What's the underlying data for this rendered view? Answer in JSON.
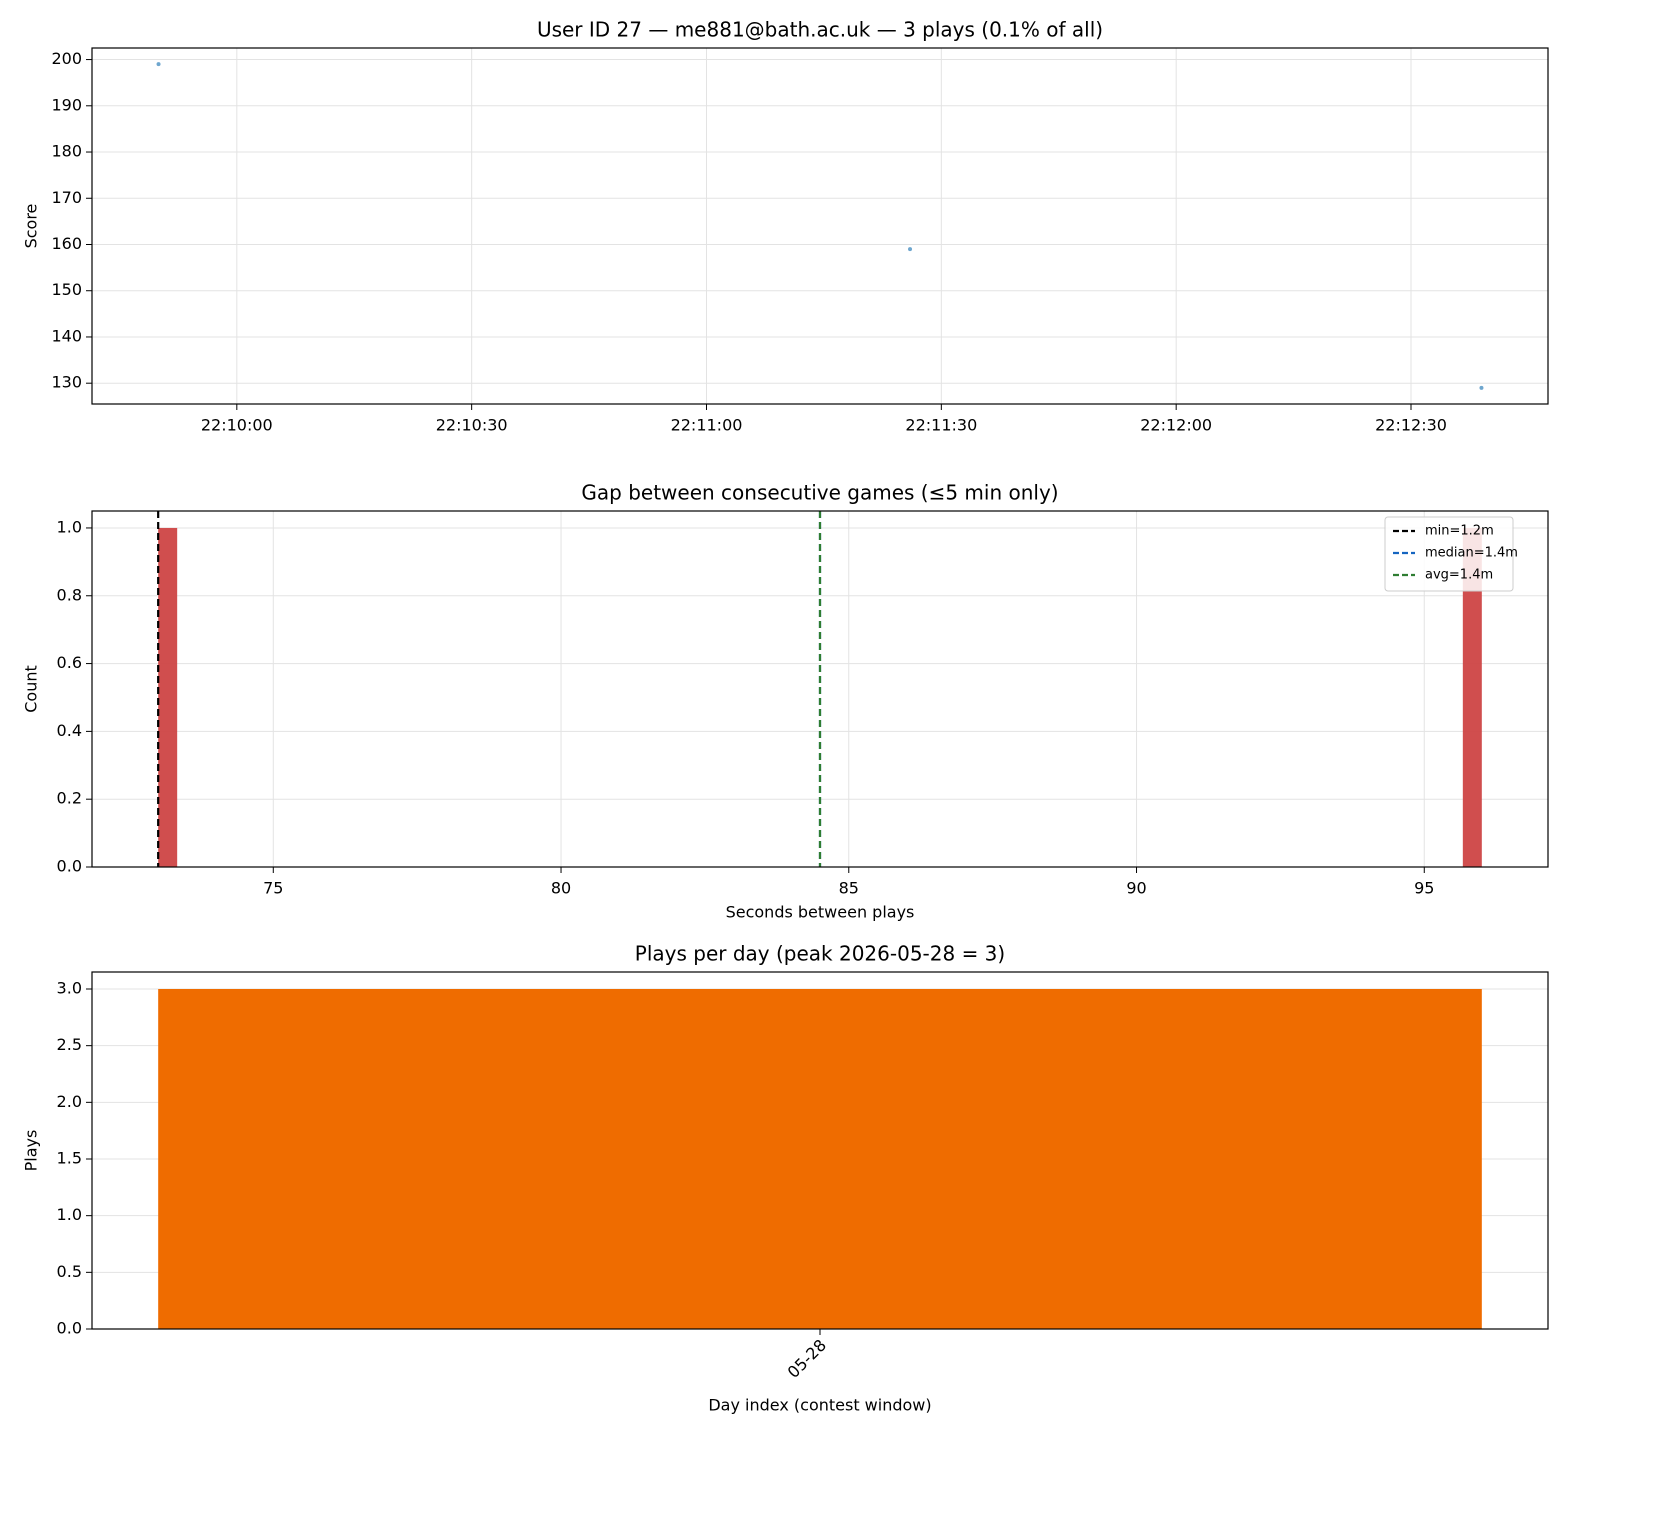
{
  "chart_data": [
    {
      "type": "scatter",
      "title": "User ID 27 — me881@bath.ac.uk — 3 plays (0.1% of all)",
      "y_label": "Score",
      "x": [
        "22:09:50",
        "22:11:26",
        "22:12:39"
      ],
      "values": [
        199,
        159,
        129
      ],
      "color": "#4a90c2",
      "xlim": [
        "22:09:41.5",
        "22:12:47.5"
      ],
      "xticks": [
        "22:10:00",
        "22:10:30",
        "22:11:00",
        "22:11:30",
        "22:12:00",
        "22:12:30"
      ],
      "ylim": [
        125.5,
        202.5
      ],
      "yticks": [
        130,
        140,
        150,
        160,
        170,
        180,
        190,
        200
      ],
      "grid": true
    },
    {
      "type": "histogram",
      "title": "Gap between consecutive games (≤5 min only)",
      "x_label": "Seconds between plays",
      "y_label": "Count",
      "bins": [
        73,
        73.33,
        73.67,
        74,
        74.33,
        74.67,
        75,
        75.33,
        75.67,
        76,
        76.33,
        76.67,
        77,
        77.33,
        77.67,
        78,
        78.33,
        78.67,
        79,
        79.33,
        79.67,
        80,
        80.33,
        80.67,
        81,
        81.33,
        81.67,
        82,
        82.33,
        82.67,
        83,
        83.33,
        83.67,
        84,
        84.33,
        84.67,
        85,
        85.33,
        85.67,
        86,
        86.33,
        86.67,
        87,
        87.33,
        87.67,
        88,
        88.33,
        88.67,
        89,
        89.33,
        89.67,
        90,
        90.33,
        90.67,
        91,
        91.33,
        91.67,
        92,
        92.33,
        92.67,
        93,
        93.33,
        93.67,
        94,
        94.33,
        94.67,
        95,
        95.33,
        95.67,
        96
      ],
      "values": [
        1,
        0,
        0,
        0,
        0,
        0,
        0,
        0,
        0,
        0,
        0,
        0,
        0,
        0,
        0,
        0,
        0,
        0,
        0,
        0,
        0,
        0,
        0,
        0,
        0,
        0,
        0,
        0,
        0,
        0,
        0,
        0,
        0,
        0,
        0,
        0,
        0,
        0,
        0,
        0,
        0,
        0,
        0,
        0,
        0,
        0,
        0,
        0,
        0,
        0,
        0,
        0,
        0,
        0,
        0,
        0,
        0,
        0,
        0,
        0,
        0,
        0,
        0,
        0,
        0,
        0,
        0,
        0,
        1
      ],
      "color": "#cd4545",
      "vlines": [
        {
          "name": "min=1.2m",
          "color": "#000000",
          "value": 73
        },
        {
          "name": "median=1.4m",
          "color": "#1565c0",
          "value": 84.5
        },
        {
          "name": "avg=1.4m",
          "color": "#2e7d32",
          "value": 84.5
        }
      ],
      "legend": "upper right",
      "xlim": [
        71.85,
        97.15
      ],
      "xticks": [
        75,
        80,
        85,
        90,
        95
      ],
      "ylim": [
        0,
        1.05
      ],
      "yticks": [
        {
          "value": 0,
          "label": "0.0"
        },
        {
          "value": 0.2,
          "label": "0.2"
        },
        {
          "value": 0.4,
          "label": "0.4"
        },
        {
          "value": 0.6,
          "label": "0.6"
        },
        {
          "value": 0.8,
          "label": "0.8"
        },
        {
          "value": 1,
          "label": "1.0"
        }
      ],
      "grid": true
    },
    {
      "type": "bar",
      "title": "Plays per day (peak 2026-05-28 = 3)",
      "x_label": "Day index (contest window)",
      "y_label": "Plays",
      "categories": [
        "05-28"
      ],
      "values": [
        3
      ],
      "color": "#ef6c00",
      "ylim": [
        0,
        3.15
      ],
      "yticks": [
        {
          "value": 0,
          "label": "0.0"
        },
        {
          "value": 0.5,
          "label": "0.5"
        },
        {
          "value": 1,
          "label": "1.0"
        },
        {
          "value": 1.5,
          "label": "1.5"
        },
        {
          "value": 2,
          "label": "2.0"
        },
        {
          "value": 2.5,
          "label": "2.5"
        },
        {
          "value": 3,
          "label": "3.0"
        }
      ],
      "grid": true
    }
  ]
}
